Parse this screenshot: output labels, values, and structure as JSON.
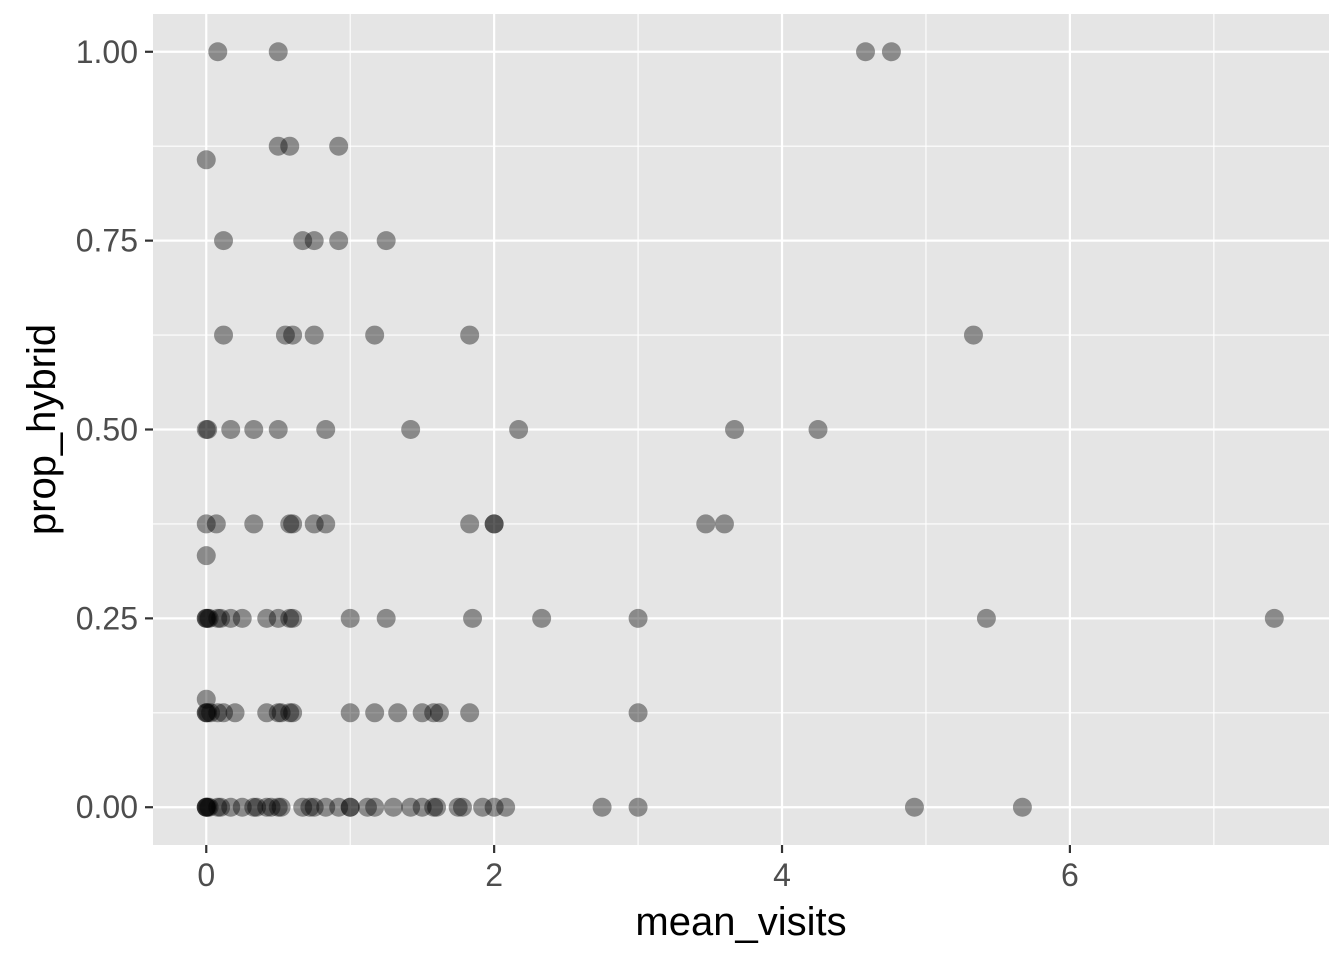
{
  "chart_data": {
    "type": "scatter",
    "xlabel": "mean_visits",
    "ylabel": "prop_hybrid",
    "xlim": [
      -0.37,
      7.8
    ],
    "ylim": [
      -0.05,
      1.05
    ],
    "x_ticks": [
      0,
      2,
      4,
      6
    ],
    "x_tick_labels": [
      "0",
      "2",
      "4",
      "6"
    ],
    "y_ticks": [
      0,
      0.25,
      0.5,
      0.75,
      1.0
    ],
    "y_tick_labels": [
      "0.00",
      "0.25",
      "0.50",
      "0.75",
      "1.00"
    ],
    "grid": true,
    "legend": "none",
    "colors": {
      "panel": "#e5e5e5",
      "grid": "#ffffff",
      "point": "#000000",
      "tick": "#333333"
    },
    "point_alpha": 0.4,
    "points": [
      {
        "x": 0.08,
        "y": 1.0
      },
      {
        "x": 0.5,
        "y": 1.0
      },
      {
        "x": 4.58,
        "y": 1.0
      },
      {
        "x": 4.76,
        "y": 1.0
      },
      {
        "x": 0.0,
        "y": 0.857
      },
      {
        "x": 0.5,
        "y": 0.875
      },
      {
        "x": 0.58,
        "y": 0.875
      },
      {
        "x": 0.92,
        "y": 0.875
      },
      {
        "x": 0.12,
        "y": 0.75
      },
      {
        "x": 0.67,
        "y": 0.75
      },
      {
        "x": 0.75,
        "y": 0.75
      },
      {
        "x": 0.92,
        "y": 0.75
      },
      {
        "x": 1.25,
        "y": 0.75
      },
      {
        "x": 0.12,
        "y": 0.625
      },
      {
        "x": 0.55,
        "y": 0.625
      },
      {
        "x": 0.6,
        "y": 0.625
      },
      {
        "x": 0.75,
        "y": 0.625
      },
      {
        "x": 1.17,
        "y": 0.625
      },
      {
        "x": 1.83,
        "y": 0.625
      },
      {
        "x": 5.33,
        "y": 0.625
      },
      {
        "x": 0.0,
        "y": 0.5
      },
      {
        "x": 0.01,
        "y": 0.5
      },
      {
        "x": 0.17,
        "y": 0.5
      },
      {
        "x": 0.33,
        "y": 0.5
      },
      {
        "x": 0.5,
        "y": 0.5
      },
      {
        "x": 0.83,
        "y": 0.5
      },
      {
        "x": 1.42,
        "y": 0.5
      },
      {
        "x": 2.17,
        "y": 0.5
      },
      {
        "x": 3.67,
        "y": 0.5
      },
      {
        "x": 4.25,
        "y": 0.5
      },
      {
        "x": 0.0,
        "y": 0.375
      },
      {
        "x": 0.07,
        "y": 0.375
      },
      {
        "x": 0.33,
        "y": 0.375
      },
      {
        "x": 0.58,
        "y": 0.375
      },
      {
        "x": 0.6,
        "y": 0.375
      },
      {
        "x": 0.75,
        "y": 0.375
      },
      {
        "x": 0.83,
        "y": 0.375
      },
      {
        "x": 1.83,
        "y": 0.375
      },
      {
        "x": 2.0,
        "y": 0.375
      },
      {
        "x": 2.0,
        "y": 0.375
      },
      {
        "x": 3.47,
        "y": 0.375
      },
      {
        "x": 3.6,
        "y": 0.375
      },
      {
        "x": 0.0,
        "y": 0.333
      },
      {
        "x": 0.0,
        "y": 0.25
      },
      {
        "x": 0.0,
        "y": 0.25
      },
      {
        "x": 0.01,
        "y": 0.25
      },
      {
        "x": 0.02,
        "y": 0.25
      },
      {
        "x": 0.08,
        "y": 0.25
      },
      {
        "x": 0.1,
        "y": 0.25
      },
      {
        "x": 0.17,
        "y": 0.25
      },
      {
        "x": 0.25,
        "y": 0.25
      },
      {
        "x": 0.42,
        "y": 0.25
      },
      {
        "x": 0.5,
        "y": 0.25
      },
      {
        "x": 0.58,
        "y": 0.25
      },
      {
        "x": 0.6,
        "y": 0.25
      },
      {
        "x": 1.0,
        "y": 0.25
      },
      {
        "x": 1.25,
        "y": 0.25
      },
      {
        "x": 1.85,
        "y": 0.25
      },
      {
        "x": 2.33,
        "y": 0.25
      },
      {
        "x": 3.0,
        "y": 0.25
      },
      {
        "x": 5.42,
        "y": 0.25
      },
      {
        "x": 7.42,
        "y": 0.25
      },
      {
        "x": 0.0,
        "y": 0.143
      },
      {
        "x": 0.0,
        "y": 0.125
      },
      {
        "x": 0.0,
        "y": 0.125
      },
      {
        "x": 0.01,
        "y": 0.125
      },
      {
        "x": 0.03,
        "y": 0.125
      },
      {
        "x": 0.08,
        "y": 0.125
      },
      {
        "x": 0.12,
        "y": 0.125
      },
      {
        "x": 0.2,
        "y": 0.125
      },
      {
        "x": 0.42,
        "y": 0.125
      },
      {
        "x": 0.5,
        "y": 0.125
      },
      {
        "x": 0.52,
        "y": 0.125
      },
      {
        "x": 0.58,
        "y": 0.125
      },
      {
        "x": 0.6,
        "y": 0.125
      },
      {
        "x": 1.0,
        "y": 0.125
      },
      {
        "x": 1.17,
        "y": 0.125
      },
      {
        "x": 1.33,
        "y": 0.125
      },
      {
        "x": 1.5,
        "y": 0.125
      },
      {
        "x": 1.58,
        "y": 0.125
      },
      {
        "x": 1.62,
        "y": 0.125
      },
      {
        "x": 1.83,
        "y": 0.125
      },
      {
        "x": 3.0,
        "y": 0.125
      },
      {
        "x": 0.0,
        "y": 0.0
      },
      {
        "x": 0.0,
        "y": 0.0
      },
      {
        "x": 0.0,
        "y": 0.0
      },
      {
        "x": 0.01,
        "y": 0.0
      },
      {
        "x": 0.02,
        "y": 0.0
      },
      {
        "x": 0.08,
        "y": 0.0
      },
      {
        "x": 0.1,
        "y": 0.0
      },
      {
        "x": 0.17,
        "y": 0.0
      },
      {
        "x": 0.25,
        "y": 0.0
      },
      {
        "x": 0.33,
        "y": 0.0
      },
      {
        "x": 0.35,
        "y": 0.0
      },
      {
        "x": 0.42,
        "y": 0.0
      },
      {
        "x": 0.45,
        "y": 0.0
      },
      {
        "x": 0.5,
        "y": 0.0
      },
      {
        "x": 0.52,
        "y": 0.0
      },
      {
        "x": 0.67,
        "y": 0.0
      },
      {
        "x": 0.72,
        "y": 0.0
      },
      {
        "x": 0.75,
        "y": 0.0
      },
      {
        "x": 0.83,
        "y": 0.0
      },
      {
        "x": 0.92,
        "y": 0.0
      },
      {
        "x": 1.0,
        "y": 0.0
      },
      {
        "x": 1.0,
        "y": 0.0
      },
      {
        "x": 1.12,
        "y": 0.0
      },
      {
        "x": 1.17,
        "y": 0.0
      },
      {
        "x": 1.3,
        "y": 0.0
      },
      {
        "x": 1.42,
        "y": 0.0
      },
      {
        "x": 1.5,
        "y": 0.0
      },
      {
        "x": 1.58,
        "y": 0.0
      },
      {
        "x": 1.6,
        "y": 0.0
      },
      {
        "x": 1.75,
        "y": 0.0
      },
      {
        "x": 1.78,
        "y": 0.0
      },
      {
        "x": 1.92,
        "y": 0.0
      },
      {
        "x": 2.0,
        "y": 0.0
      },
      {
        "x": 2.08,
        "y": 0.0
      },
      {
        "x": 2.75,
        "y": 0.0
      },
      {
        "x": 3.0,
        "y": 0.0
      },
      {
        "x": 4.92,
        "y": 0.0
      },
      {
        "x": 5.67,
        "y": 0.0
      }
    ]
  }
}
